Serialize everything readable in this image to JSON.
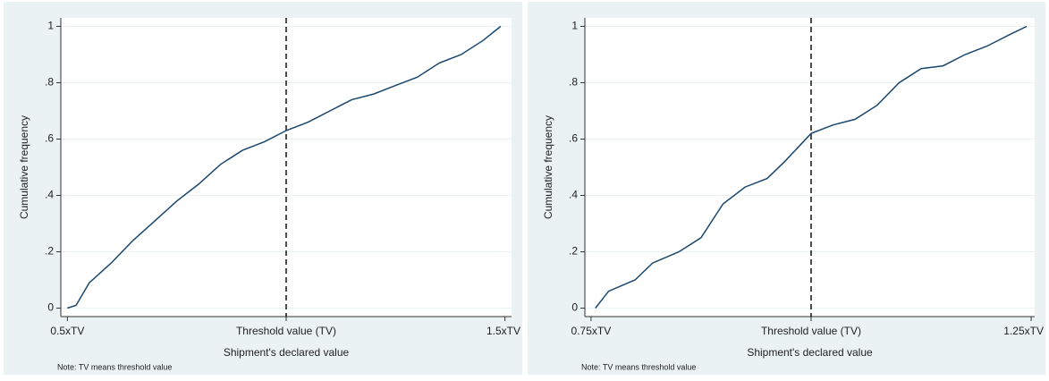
{
  "chart_data": [
    {
      "type": "line",
      "y_label": "Cumulative frequency",
      "x_label": "Shipment's declared value",
      "note": "Note: TV means threshold value",
      "xlim": [
        0.485,
        1.515
      ],
      "xticks": [
        {
          "value": 0.5,
          "label": "0.5xTV"
        },
        {
          "value": 1.0,
          "label": "Threshold value (TV)"
        },
        {
          "value": 1.5,
          "label": "1.5xTV"
        }
      ],
      "ylim": [
        -0.03,
        1.03
      ],
      "yticks": [
        {
          "value": 0,
          "label": "0"
        },
        {
          "value": 0.2,
          "label": ".2"
        },
        {
          "value": 0.4,
          "label": ".4"
        },
        {
          "value": 0.6,
          "label": ".6"
        },
        {
          "value": 0.8,
          "label": ".8"
        },
        {
          "value": 1,
          "label": "1"
        }
      ],
      "grid": true,
      "vline": 1.0,
      "series": [
        {
          "color": "#1a476f",
          "x": [
            0.5,
            0.52,
            0.55,
            0.6,
            0.65,
            0.7,
            0.75,
            0.8,
            0.85,
            0.9,
            0.95,
            1.0,
            1.05,
            1.1,
            1.15,
            1.2,
            1.25,
            1.3,
            1.35,
            1.4,
            1.45,
            1.49
          ],
          "values": [
            0,
            0.01,
            0.09,
            0.16,
            0.24,
            0.31,
            0.38,
            0.44,
            0.51,
            0.56,
            0.59,
            0.63,
            0.66,
            0.7,
            0.74,
            0.76,
            0.79,
            0.82,
            0.87,
            0.9,
            0.95,
            1.0
          ]
        }
      ]
    },
    {
      "type": "line",
      "y_label": "Cumulative frequency",
      "x_label": "Shipment's declared value",
      "note": "Note: TV means threshold value",
      "xlim": [
        0.743,
        1.254
      ],
      "xticks": [
        {
          "value": 0.75,
          "label": "0.75xTV"
        },
        {
          "value": 1.0,
          "label": "Threshold value (TV)"
        },
        {
          "value": 1.25,
          "label": "1.25xTV"
        }
      ],
      "ylim": [
        -0.03,
        1.03
      ],
      "yticks": [
        {
          "value": 0,
          "label": "0"
        },
        {
          "value": 0.2,
          "label": ".2"
        },
        {
          "value": 0.4,
          "label": ".4"
        },
        {
          "value": 0.6,
          "label": ".6"
        },
        {
          "value": 0.8,
          "label": ".8"
        },
        {
          "value": 1,
          "label": "1"
        }
      ],
      "grid": true,
      "vline": 1.0,
      "series": [
        {
          "color": "#1a476f",
          "x": [
            0.755,
            0.77,
            0.8,
            0.82,
            0.85,
            0.875,
            0.9,
            0.925,
            0.95,
            0.97,
            1.0,
            1.025,
            1.05,
            1.075,
            1.1,
            1.125,
            1.15,
            1.175,
            1.2,
            1.225,
            1.245
          ],
          "values": [
            0,
            0.06,
            0.1,
            0.16,
            0.2,
            0.25,
            0.37,
            0.43,
            0.46,
            0.52,
            0.62,
            0.65,
            0.67,
            0.72,
            0.8,
            0.85,
            0.86,
            0.9,
            0.93,
            0.97,
            1.0
          ]
        }
      ]
    }
  ]
}
